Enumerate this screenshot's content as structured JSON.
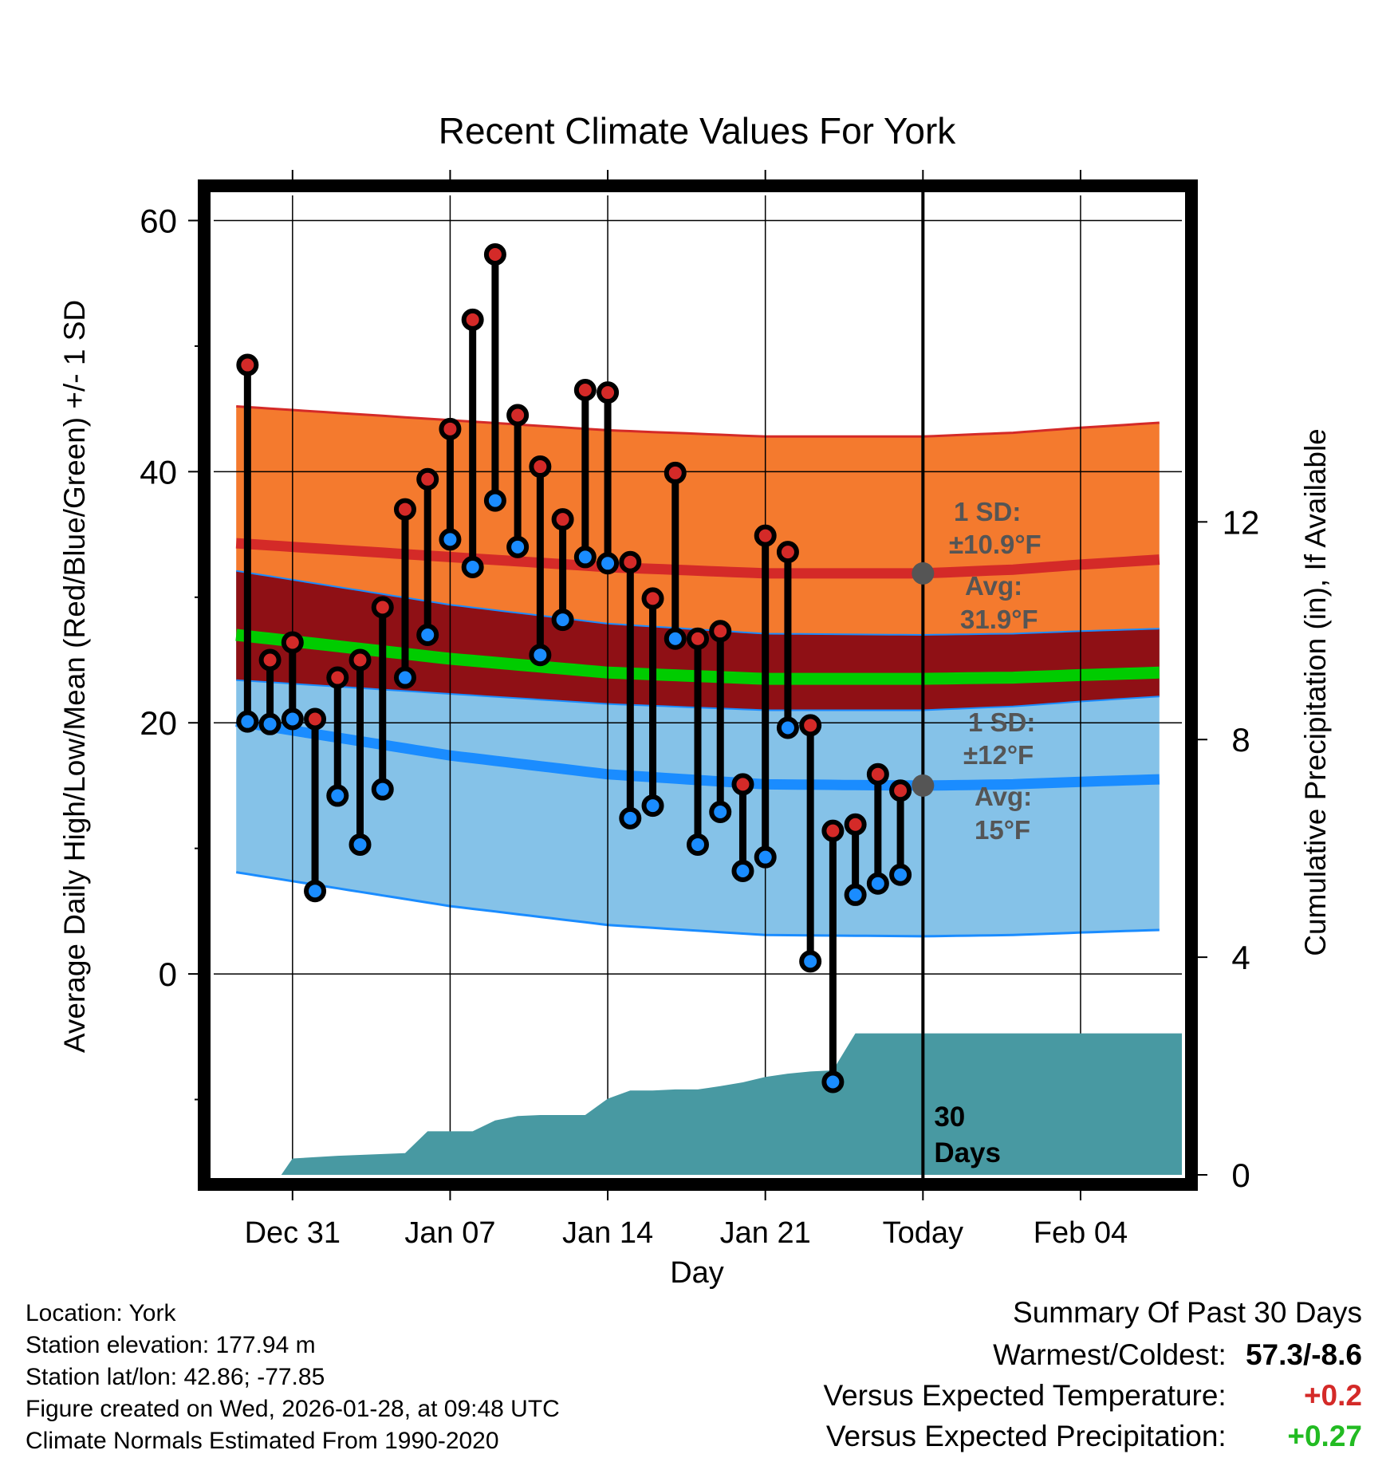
{
  "chart_data": {
    "type": "line",
    "title": "Recent Climate Values For York",
    "xlabel": "Day",
    "ylabel": "Average Daily High/Low/Mean (Red/Blue/Green) +/- 1 SD",
    "y2label": "Cumulative Precipitation (in), If Available",
    "ylim": [
      -16,
      62
    ],
    "y2lim": [
      0,
      18
    ],
    "xlim": [
      -3.5,
      39.5
    ],
    "yticks": [
      0,
      20,
      40,
      60
    ],
    "y2ticks": [
      0,
      4,
      8,
      12
    ],
    "x_ticks": [
      {
        "x": 0,
        "label": "Dec 31"
      },
      {
        "x": 7,
        "label": "Jan 07"
      },
      {
        "x": 14,
        "label": "Jan 14"
      },
      {
        "x": 21,
        "label": "Jan 21"
      },
      {
        "x": 28,
        "label": "Today"
      },
      {
        "x": 35,
        "label": "Feb 04"
      }
    ],
    "today_x": 28,
    "today_label": [
      "30",
      "Days"
    ],
    "normals": {
      "x": [
        -2.5,
        7,
        14,
        21,
        28,
        32,
        35,
        38.5
      ],
      "high_mean": [
        34.3,
        33.2,
        32.4,
        31.9,
        31.9,
        32.2,
        32.6,
        33.0
      ],
      "high_sd": 10.9,
      "mean": [
        27.0,
        25.1,
        24.0,
        23.5,
        23.5,
        23.6,
        23.8,
        24.0
      ],
      "low_mean": [
        20.1,
        17.4,
        15.9,
        15.1,
        15.0,
        15.1,
        15.3,
        15.5
      ],
      "low_sd": 12.0
    },
    "observed": {
      "x": [
        -2,
        -1,
        0,
        1,
        2,
        3,
        4,
        5,
        6,
        7,
        8,
        9,
        10,
        11,
        12,
        13,
        14,
        15,
        16,
        17,
        18,
        19,
        20,
        21,
        22,
        23,
        24,
        25,
        26,
        27
      ],
      "high": [
        48.5,
        25.0,
        26.4,
        20.3,
        23.6,
        25.0,
        29.2,
        37.0,
        39.4,
        43.4,
        52.1,
        57.3,
        44.5,
        40.4,
        36.2,
        46.5,
        46.3,
        32.8,
        29.9,
        39.9,
        26.7,
        27.3,
        15.1,
        34.9,
        33.6,
        19.8,
        11.4,
        11.9,
        15.9,
        14.6
      ],
      "low": [
        20.1,
        19.9,
        20.3,
        6.6,
        14.2,
        10.3,
        14.7,
        23.6,
        27.0,
        34.6,
        32.4,
        37.7,
        34.0,
        25.4,
        28.2,
        33.2,
        32.7,
        12.4,
        13.4,
        26.7,
        10.3,
        12.9,
        8.2,
        9.3,
        19.6,
        1.0,
        -8.6,
        6.3,
        7.2,
        7.9
      ]
    },
    "precip": {
      "x": [
        -2.5,
        -0.5,
        0,
        2,
        5,
        6,
        7,
        8,
        9,
        10,
        11,
        12,
        13,
        14,
        15,
        16,
        17,
        18,
        19,
        20,
        21,
        22,
        23,
        24,
        25,
        26,
        27,
        28,
        39.5
      ],
      "cumulative": [
        0,
        0,
        0.3,
        0.35,
        0.4,
        0.8,
        0.8,
        0.8,
        1.0,
        1.08,
        1.1,
        1.1,
        1.1,
        1.4,
        1.55,
        1.55,
        1.57,
        1.57,
        1.63,
        1.7,
        1.8,
        1.86,
        1.9,
        1.92,
        2.6,
        2.6,
        2.6,
        2.6,
        2.6
      ]
    },
    "annotations": {
      "high": {
        "sd_title": "1 SD:",
        "sd_value": "±10.9°F",
        "avg_title": "Avg:",
        "avg_value": "31.9°F"
      },
      "low": {
        "sd_title": "1 SD:",
        "sd_value": "±12°F",
        "avg_title": "Avg:",
        "avg_value": "15°F"
      }
    },
    "colors": {
      "high_band": "#f47a2e",
      "high_line": "#d42a28",
      "mean_band": "#8f1015",
      "mean_line": "#00cc00",
      "low_band": "#85c2e8",
      "low_line": "#1a8cff",
      "precip": "#4899a2",
      "high_dot": "#d42a28",
      "low_dot": "#1a8cff",
      "annotation": "#555555"
    }
  },
  "info": {
    "location": "Location: York",
    "elevation": "Station elevation: 177.94 m",
    "latlon": "Station lat/lon: 42.86; -77.85",
    "created": "Figure created on Wed, 2026-01-28, at 09:48 UTC",
    "normals": "Climate Normals Estimated From 1990-2020"
  },
  "summary": {
    "title": "Summary Of Past 30 Days",
    "warmest_label": "Warmest/Coldest:",
    "warmest_value": "57.3/-8.6",
    "temp_label": "Versus Expected Temperature:",
    "temp_value": "+0.2",
    "temp_color": "#d42a28",
    "precip_label": "Versus Expected Precipitation:",
    "precip_value": "+0.27",
    "precip_color": "#22bb22"
  }
}
